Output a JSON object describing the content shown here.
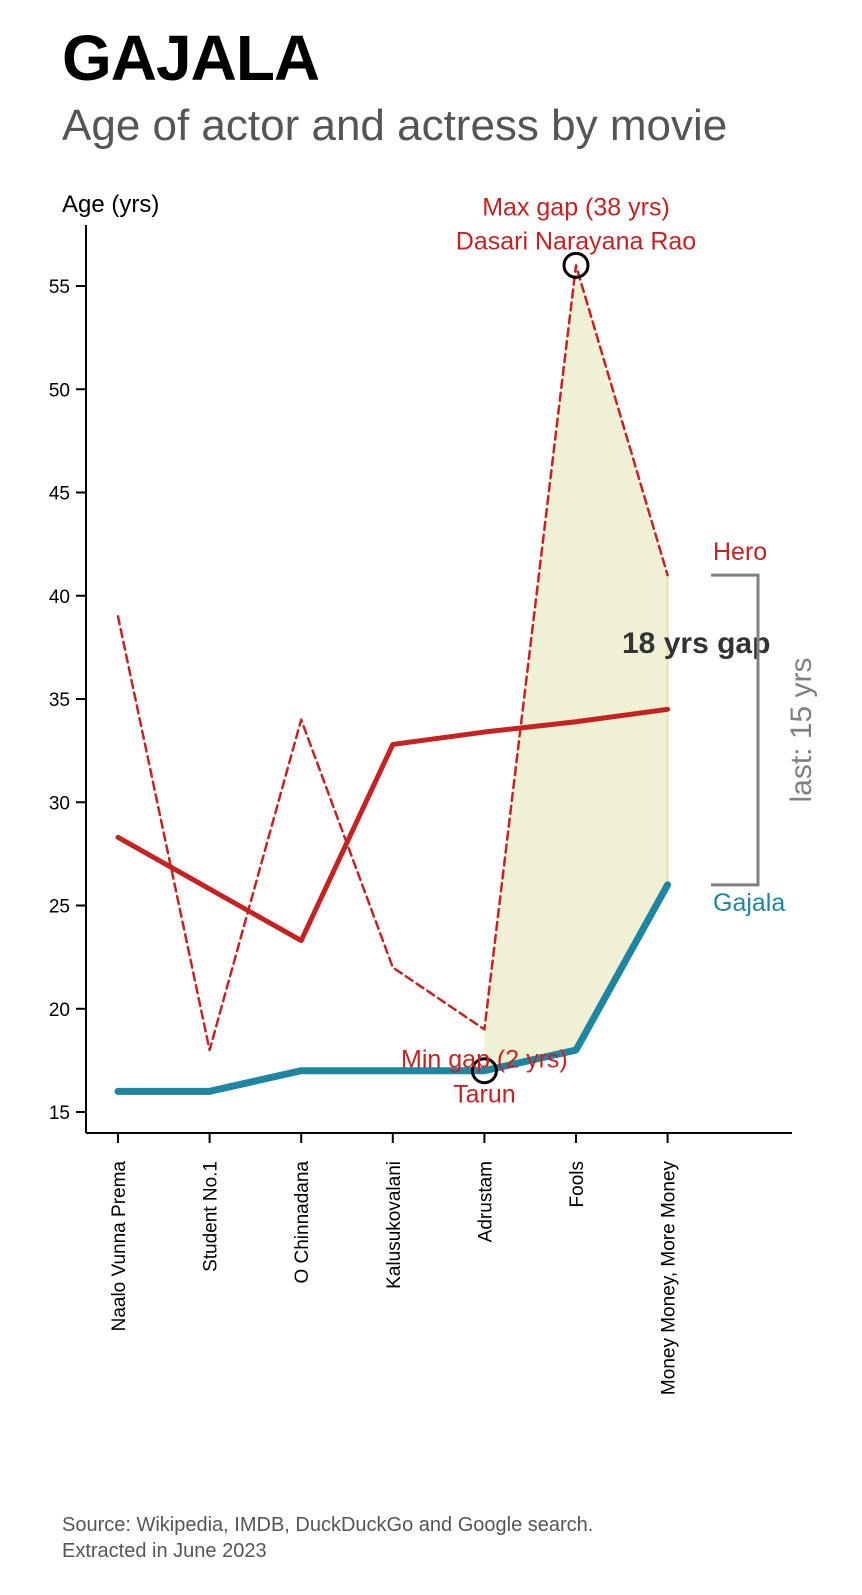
{
  "header": {
    "title": "GAJALA",
    "subtitle": "Age of actor and actress by movie"
  },
  "footer": {
    "source_line1": "Source: Wikipedia, IMDB, DuckDuckGo and Google search.",
    "source_line2": "Extracted in June 2023"
  },
  "chart_data": {
    "type": "line",
    "ylabel": "Age (yrs)",
    "ylim": [
      14,
      58
    ],
    "yticks": [
      15,
      20,
      25,
      30,
      35,
      40,
      45,
      50,
      55
    ],
    "categories": [
      "Naalo Vunna Prema",
      "Student No.1",
      "O Chinnadana",
      "Kalusukovalani",
      "Adrustam",
      "Fools",
      "Money Money, More Money"
    ],
    "series": [
      {
        "name": "Hero",
        "style": "dashed",
        "color": "#c62222",
        "values": [
          39,
          18,
          34,
          22,
          19,
          56,
          41
        ]
      },
      {
        "name": "Gajala",
        "style": "solid-thick",
        "color": "#1f86a2",
        "values": [
          16,
          16,
          17,
          17,
          17,
          18,
          26
        ]
      },
      {
        "name": "",
        "style": "solid-trend",
        "color": "#c62222",
        "values": [
          28.3,
          25.8,
          23.3,
          32.8,
          33.4,
          33.9,
          34.5
        ]
      }
    ],
    "shaded_region": {
      "from_index": 4,
      "to_index": 6,
      "color": "#f0f0d4"
    },
    "annotations": {
      "max_gap": {
        "index": 5,
        "value": 56,
        "line1": "Max gap (38 yrs)",
        "line2": "Dasari Narayana Rao"
      },
      "min_gap": {
        "index": 4,
        "value": 17,
        "line1": "Min gap (2 yrs)",
        "line2": "Tarun"
      },
      "gap_label": "18 yrs gap",
      "last_bracket": {
        "label": "last: 15 yrs",
        "top": 41,
        "bottom": 26
      },
      "hero_label": "Hero",
      "actress_label": "Gajala"
    },
    "colors": {
      "hero": "#c62222",
      "actress": "#1f86a2",
      "bracket": "#808080",
      "gap_text": "#333333"
    }
  }
}
